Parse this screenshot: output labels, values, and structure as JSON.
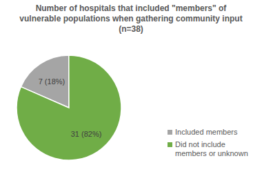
{
  "chart_data": {
    "type": "pie",
    "title": "Number of hospitals that included \"members\" of vulnerable populations when gathering community input (n=38)",
    "categories": [
      "Included members",
      "Did not include members or unknown"
    ],
    "values": [
      7,
      31
    ],
    "value_labels": [
      "7 (18%)",
      "31 (82%)"
    ],
    "colors": [
      "#a5a5a5",
      "#70ad47"
    ],
    "data_labels": true,
    "legend": "right"
  }
}
